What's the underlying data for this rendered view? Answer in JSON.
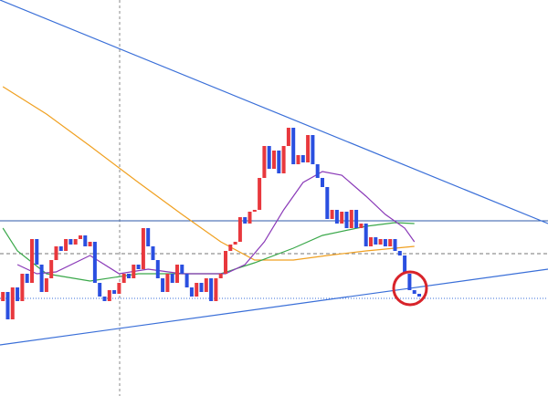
{
  "chart_data": {
    "type": "candlestick",
    "xlim": [
      -0.6,
      112.6
    ],
    "ylim": [
      0,
      434
    ],
    "up_color": "#e8383d",
    "down_color": "#2a4fe0",
    "candles": {
      "open": [
        104,
        114,
        84,
        119,
        104,
        134,
        124,
        172,
        144,
        114,
        129,
        149,
        164,
        159,
        172,
        166,
        172,
        176,
        164,
        169,
        124,
        109,
        104,
        116,
        112,
        124,
        134,
        129,
        144,
        139,
        184,
        164,
        149,
        129,
        114,
        134,
        124,
        144,
        134,
        119,
        109,
        124,
        114,
        129,
        104,
        129,
        134,
        159,
        166,
        169,
        196,
        189,
        202,
        204,
        239,
        274,
        249,
        269,
        244,
        274,
        294,
        254,
        264,
        256,
        286,
        254,
        239,
        229,
        194,
        204,
        189,
        202,
        184,
        204,
        184,
        189,
        164,
        174,
        166,
        172,
        164,
        172,
        159,
        154,
        134,
        116,
        112
      ],
      "close": [
        114,
        84,
        119,
        104,
        134,
        124,
        172,
        144,
        114,
        129,
        149,
        164,
        159,
        172,
        166,
        172,
        176,
        164,
        169,
        124,
        109,
        104,
        116,
        112,
        124,
        134,
        129,
        144,
        139,
        184,
        164,
        149,
        129,
        114,
        134,
        124,
        144,
        134,
        119,
        109,
        124,
        114,
        129,
        104,
        129,
        134,
        159,
        166,
        169,
        196,
        189,
        202,
        204,
        239,
        274,
        249,
        269,
        244,
        274,
        294,
        254,
        264,
        256,
        286,
        254,
        239,
        229,
        194,
        204,
        189,
        202,
        184,
        204,
        184,
        189,
        164,
        174,
        166,
        172,
        164,
        172,
        159,
        154,
        134,
        116,
        112,
        109
      ]
    },
    "lines": [
      {
        "color": "#f0a020",
        "x": [
          0,
          9,
          18,
          28,
          37,
          45,
          52,
          60,
          67,
          75,
          85
        ],
        "values": [
          339,
          309,
          274,
          234,
          199,
          169,
          149,
          149,
          154,
          159,
          164
        ]
      },
      {
        "color": "#3aa84a",
        "x": [
          0,
          3,
          9,
          18,
          28,
          37,
          45,
          52,
          60,
          66,
          75,
          81,
          85
        ],
        "values": [
          184,
          159,
          134,
          126,
          134,
          134,
          134,
          146,
          162,
          176,
          186,
          190,
          189
        ]
      },
      {
        "color": "#8a3ab8",
        "x": [
          3,
          7,
          11,
          18,
          24,
          30,
          37,
          46,
          50,
          54,
          58,
          62,
          66,
          70,
          75,
          79,
          83,
          85
        ],
        "values": [
          144,
          134,
          136,
          154,
          134,
          139,
          134,
          134,
          144,
          169,
          204,
          234,
          246,
          242,
          219,
          199,
          184,
          169
        ]
      },
      {
        "color": "#3a6fd8",
        "x": [
          -0.6,
          112.6
        ],
        "values": [
          434,
          189
        ]
      },
      {
        "color": "#3a6fd8",
        "x": [
          -0.6,
          112.6
        ],
        "values": [
          56,
          139
        ]
      }
    ],
    "hlines": [
      {
        "value": 192,
        "color": "#2c5aa8",
        "style": "solid"
      },
      {
        "value": 156,
        "color": "#777777",
        "style": "dashed"
      },
      {
        "value": 107,
        "color": "#3a6fd8",
        "style": "dotted"
      }
    ]
  }
}
